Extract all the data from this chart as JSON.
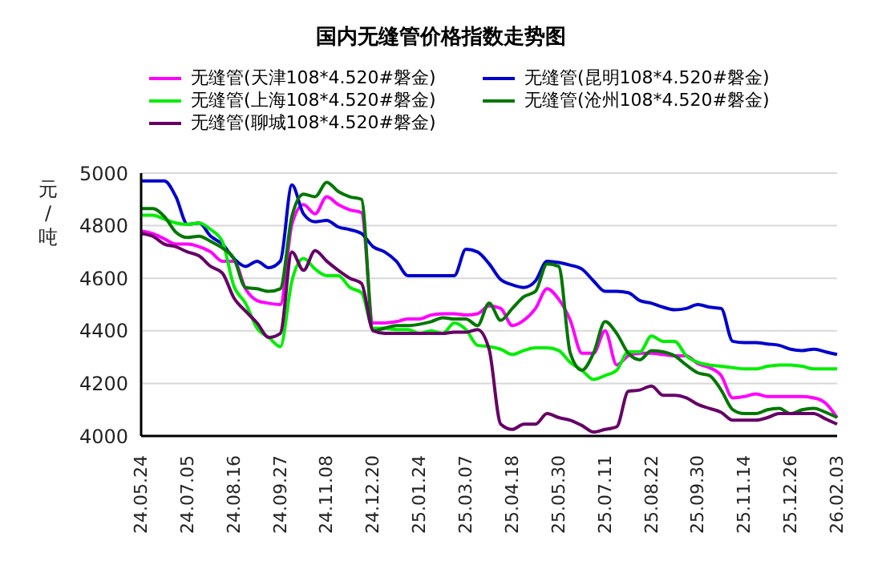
{
  "chart_data": {
    "type": "line",
    "title": "国内无缝管价格指数走势图",
    "ylabel": "元/吨",
    "categories": [
      "24.05.24",
      null,
      null,
      null,
      "24.07.05",
      null,
      null,
      null,
      "24.08.16",
      null,
      null,
      null,
      "24.09.27",
      null,
      null,
      null,
      "24.11.08",
      null,
      null,
      null,
      "24.12.20",
      null,
      null,
      null,
      "25.01.24",
      null,
      null,
      null,
      "25.03.07",
      null,
      null,
      null,
      "25.04.18",
      null,
      null,
      null,
      "25.05.30",
      null,
      null,
      null,
      "25.07.11",
      null,
      null,
      null,
      "25.08.22",
      null,
      null,
      null,
      "25.09.30",
      null,
      null,
      null,
      "25.11.14",
      null,
      null,
      null,
      "25.12.26",
      null,
      null,
      null,
      "26.02.03"
    ],
    "series": [
      {
        "name": "无缝管(天津108*4.520#磐金)",
        "color": "#ff00ff",
        "values": [
          4780,
          4770,
          4750,
          4730,
          4730,
          4720,
          4700,
          4665,
          4665,
          4560,
          4515,
          4505,
          4500,
          4805,
          4880,
          4845,
          4910,
          4880,
          4860,
          4850,
          4430,
          4430,
          4435,
          4445,
          4445,
          4460,
          4465,
          4465,
          4460,
          4465,
          4495,
          4485,
          4420,
          4440,
          4485,
          4560,
          4520,
          4440,
          4315,
          4315,
          4400,
          4270,
          4305,
          4315,
          4315,
          4310,
          4305,
          4305,
          4275,
          4260,
          4230,
          4145,
          4150,
          4160,
          4150,
          4150,
          4150,
          4150,
          4145,
          4125,
          4070
        ]
      },
      {
        "name": "无缝管(昆明108*4.520#磐金)",
        "color": "#0000cc",
        "values": [
          4970,
          4970,
          4970,
          4910,
          4805,
          4810,
          4760,
          4730,
          4675,
          4645,
          4665,
          4640,
          4665,
          4955,
          4845,
          4815,
          4820,
          4795,
          4785,
          4770,
          4720,
          4700,
          4665,
          4610,
          4610,
          4610,
          4610,
          4610,
          4710,
          4700,
          4655,
          4595,
          4575,
          4565,
          4590,
          4665,
          4660,
          4650,
          4635,
          4590,
          4550,
          4550,
          4545,
          4515,
          4505,
          4490,
          4480,
          4485,
          4500,
          4490,
          4485,
          4360,
          4355,
          4355,
          4350,
          4345,
          4330,
          4325,
          4330,
          4320,
          4310
        ]
      },
      {
        "name": "无缝管(上海108*4.520#磐金)",
        "color": "#00ee00",
        "values": [
          4840,
          4840,
          4825,
          4810,
          4805,
          4810,
          4785,
          4740,
          4570,
          4505,
          4410,
          4375,
          4340,
          4590,
          4675,
          4635,
          4610,
          4610,
          4565,
          4545,
          4410,
          4410,
          4405,
          4405,
          4390,
          4400,
          4390,
          4430,
          4405,
          4345,
          4340,
          4330,
          4310,
          4325,
          4335,
          4335,
          4325,
          4280,
          4250,
          4215,
          4230,
          4250,
          4320,
          4320,
          4380,
          4360,
          4360,
          4305,
          4280,
          4270,
          4265,
          4260,
          4255,
          4255,
          4265,
          4270,
          4270,
          4265,
          4255,
          4255,
          4255
        ]
      },
      {
        "name": "无缝管(沧州108*4.520#磐金)",
        "color": "#007700",
        "values": [
          4865,
          4865,
          4835,
          4775,
          4755,
          4760,
          4740,
          4715,
          4675,
          4565,
          4560,
          4550,
          4560,
          4835,
          4920,
          4910,
          4965,
          4930,
          4910,
          4900,
          4400,
          4410,
          4420,
          4420,
          4425,
          4435,
          4450,
          4445,
          4445,
          4420,
          4505,
          4440,
          4485,
          4530,
          4550,
          4655,
          4645,
          4315,
          4250,
          4315,
          4435,
          4390,
          4315,
          4290,
          4325,
          4320,
          4305,
          4270,
          4240,
          4230,
          4175,
          4100,
          4085,
          4085,
          4100,
          4105,
          4085,
          4100,
          4105,
          4090,
          4070
        ]
      },
      {
        "name": "无缝管(聊城108*4.520#磐金)",
        "color": "#660066",
        "values": [
          4770,
          4760,
          4730,
          4720,
          4700,
          4685,
          4645,
          4620,
          4525,
          4475,
          4430,
          4375,
          4390,
          4700,
          4630,
          4705,
          4665,
          4630,
          4600,
          4580,
          4400,
          4390,
          4390,
          4390,
          4390,
          4390,
          4390,
          4395,
          4395,
          4405,
          4330,
          4045,
          4025,
          4045,
          4045,
          4085,
          4070,
          4060,
          4040,
          4015,
          4025,
          4035,
          4170,
          4175,
          4190,
          4155,
          4155,
          4145,
          4120,
          4105,
          4090,
          4060,
          4060,
          4060,
          4070,
          4085,
          4085,
          4085,
          4085,
          4065,
          4045
        ]
      }
    ],
    "ylim": [
      4000,
      5000
    ],
    "yticks": [
      4000,
      4200,
      4400,
      4600,
      4800,
      5000
    ],
    "grid": "y",
    "legend": "top",
    "marker": "none",
    "line_style": "solid"
  }
}
